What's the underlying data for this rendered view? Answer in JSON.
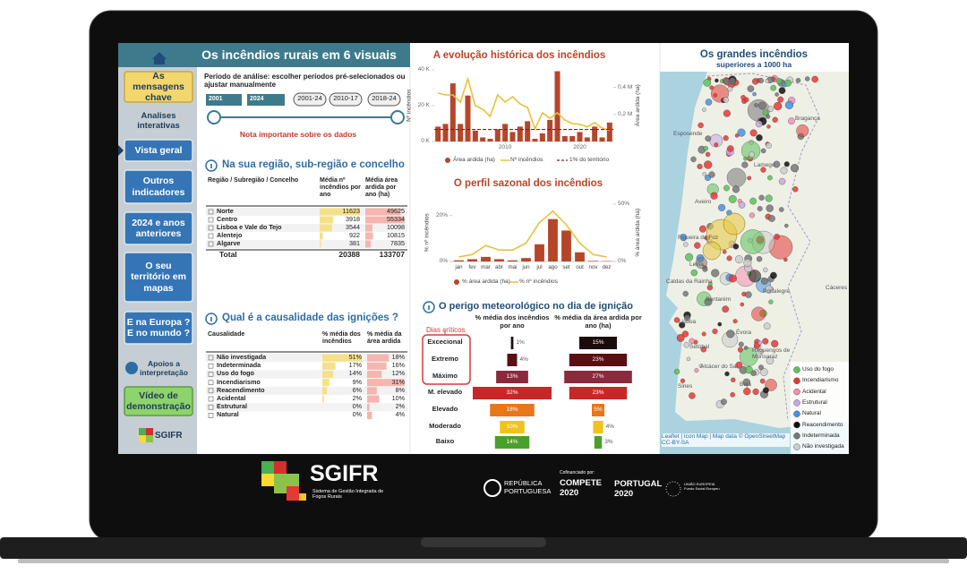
{
  "sidebar": {
    "items": [
      "As mensagens chave",
      "Analises interativas",
      "Vista geral",
      "Outros indicadores",
      "2024 e anos anteriores",
      "O seu território em mapas",
      "E na Europa ? E no mundo ?",
      "Apoios a interpretação",
      "Vídeo de demonstração"
    ],
    "logo": "SGIFR"
  },
  "header": {
    "title": "Os incêndios rurais em 6 visuais"
  },
  "period": {
    "label": "Período de análise: escolher períodos pré-selecionados ou ajustar manualmente",
    "start": "2001",
    "end": "2024",
    "presets": [
      "2001-24",
      "2010-17",
      "2018-24"
    ],
    "note": "Nota importante sobre os dados"
  },
  "regions": {
    "title": "Na sua região, sub-região e concelho",
    "category_header": "Região / Subregião / Concelho",
    "categories": [
      "Norte",
      "Centro",
      "Lisboa e Vale do Tejo",
      "Alentejo",
      "Algarve"
    ],
    "series": [
      {
        "name": "Média nº incêndios por ano",
        "color": "#f5e08a",
        "values": [
          11623,
          3918,
          3544,
          922,
          381
        ]
      },
      {
        "name": "Média área ardida por ano (ha)",
        "color": "#f4b6b0",
        "values": [
          49625,
          55334,
          10098,
          10815,
          7835
        ]
      }
    ],
    "total": {
      "label": "Total",
      "values": [
        20388,
        133707
      ]
    }
  },
  "causes": {
    "title": "Qual é a causalidade das ignições ?",
    "category_header": "Causalidade",
    "categories": [
      "Não investigada",
      "Indeterminada",
      "Uso do fogo",
      "Incendiarismo",
      "Reacendimento",
      "Acidental",
      "Estrutural",
      "Natural"
    ],
    "series": [
      {
        "name": "% média dos incêndios",
        "color": "#f5e08a",
        "values": [
          51,
          17,
          14,
          9,
          6,
          2,
          0,
          0
        ],
        "value_labels": [
          "51%",
          "17%",
          "14%",
          "9%",
          "6%",
          "2%",
          "0%",
          "0%"
        ]
      },
      {
        "name": "% média da área ardida",
        "color": "#f4b6b0",
        "values": [
          18,
          16,
          12,
          31,
          8,
          10,
          2,
          4
        ],
        "value_labels": [
          "18%",
          "16%",
          "12%",
          "31%",
          "8%",
          "10%",
          "2%",
          "4%"
        ]
      }
    ]
  },
  "chart_data": [
    {
      "type": "bar-line",
      "title": "A evolução histórica dos incêndios",
      "x": [
        2001,
        2002,
        2003,
        2004,
        2005,
        2006,
        2007,
        2008,
        2009,
        2010,
        2011,
        2012,
        2013,
        2014,
        2015,
        2016,
        2017,
        2018,
        2019,
        2020,
        2021,
        2022,
        2023,
        2024
      ],
      "xlim": [
        2000.5,
        2024.5
      ],
      "xticks": [
        2010,
        2020
      ],
      "ylabel": "Nº incêndios",
      "y2label": "Área ardida (ha)",
      "ylim": [
        0,
        40000
      ],
      "yticks": [
        {
          "value": 0,
          "label": "0 K"
        },
        {
          "value": 20000,
          "label": "20 K"
        },
        {
          "value": 40000,
          "label": "40 K"
        }
      ],
      "y2lim": [
        0,
        530000
      ],
      "y2ticks": [
        {
          "value": 200000,
          "label": "0,2 M"
        },
        {
          "value": 400000,
          "label": "0,4 M"
        }
      ],
      "series": [
        {
          "name": "Área ardida (ha)",
          "color": "#b5462a",
          "axis": "y2",
          "values": [
            110000,
            130000,
            430000,
            130000,
            340000,
            80000,
            30000,
            20000,
            90000,
            130000,
            70000,
            110000,
            150000,
            20000,
            60000,
            160000,
            520000,
            40000,
            40000,
            70000,
            30000,
            110000,
            30000,
            140000
          ]
        },
        {
          "name": "Nº incêndios",
          "color": "#e8c13a",
          "values": [
            27000,
            26000,
            26000,
            22000,
            35000,
            20000,
            18000,
            14000,
            26000,
            22000,
            25000,
            21000,
            19000,
            7000,
            16000,
            13000,
            16000,
            12000,
            10000,
            9600,
            8200,
            10500,
            7500,
            6200
          ]
        }
      ],
      "reference": {
        "name": "1% do território",
        "value": 89000,
        "axis": "y2",
        "color": "#8b1a1a"
      }
    },
    {
      "type": "bar-line",
      "title": "O perfil sazonal dos incêndios",
      "categories": [
        "jan",
        "fev",
        "mar",
        "abr",
        "mai",
        "jun",
        "jul",
        "ago",
        "set",
        "out",
        "nov",
        "dez"
      ],
      "ylabel": "% nº incêndios",
      "y2label": "% área ardida (ha)",
      "ylim": [
        0,
        25
      ],
      "yticks": [
        {
          "value": 0,
          "label": "0%"
        },
        {
          "value": 20,
          "label": "20%"
        }
      ],
      "y2lim": [
        0,
        50
      ],
      "y2ticks": [
        {
          "value": 0,
          "label": "0%"
        },
        {
          "value": 50,
          "label": "50%"
        }
      ],
      "series": [
        {
          "name": "% área ardida (ha)",
          "color": "#b5462a",
          "axis": "y2",
          "values": [
            1,
            2,
            4,
            2,
            1,
            3,
            15,
            37,
            27,
            8,
            0.5,
            0.3
          ]
        },
        {
          "name": "% nº incêndios",
          "color": "#e8c13a",
          "values": [
            2,
            3,
            7,
            5,
            5,
            8,
            17,
            22,
            16,
            8,
            3,
            2
          ]
        }
      ]
    },
    {
      "type": "funnel",
      "title": "O perigo meteorológico no dia de ignição",
      "annotation": "Dias críticos",
      "categories": [
        "Excecional",
        "Extremo",
        "Máximo",
        "M. elevado",
        "Elevado",
        "Moderado",
        "Baixo"
      ],
      "colors": [
        "#1c0b0b",
        "#5a1012",
        "#8b2a3c",
        "#c62828",
        "#e8761b",
        "#f2c21b",
        "#4aa02c"
      ],
      "series": [
        {
          "name": "% média dos incêndios por ano",
          "values": [
            1,
            4,
            13,
            32,
            18,
            10,
            14
          ],
          "value_labels": [
            "1%",
            "4%",
            "13%",
            "32%",
            "18%",
            "10%",
            "14%"
          ]
        },
        {
          "name": "% média da área ardida por ano (ha)",
          "values": [
            15,
            23,
            27,
            23,
            5,
            4,
            3
          ],
          "value_labels": [
            "15%",
            "23%",
            "27%",
            "23%",
            "5%",
            "4%",
            "3%"
          ]
        }
      ]
    }
  ],
  "map": {
    "title": "Os grandes incêndios",
    "subtitle": "superiores a 1000 ha",
    "places": [
      "Bragança",
      "Esposende",
      "Lamego",
      "Aveiro",
      "Figueira da Foz",
      "Leiria",
      "Caldas da Rainha",
      "Santarém",
      "Portalegre",
      "Cáceres",
      "Lisboa",
      "Setúbal",
      "Évora",
      "Sines",
      "Beja",
      "Reguengos de Monsaraz",
      "Alcácer do Sal"
    ],
    "legend": [
      {
        "name": "Uso do fogo",
        "color": "#5cc15a"
      },
      {
        "name": "Incendiarismo",
        "color": "#e53935"
      },
      {
        "name": "Acidental",
        "color": "#f48fb1"
      },
      {
        "name": "Estrutural",
        "color": "#c9a6e0"
      },
      {
        "name": "Natural",
        "color": "#4a90e2"
      },
      {
        "name": "Reacendimento",
        "color": "#111111"
      },
      {
        "name": "Indeterminada",
        "color": "#777777"
      },
      {
        "name": "Não investigada",
        "color": "#cccccc"
      }
    ],
    "attribution": "Leaflet | Icon Map | Map data © OpenStreetMap CC-BY-SA"
  },
  "footer": {
    "logo": "SGIFR",
    "logo_subtitle": "Sistema de Gestão Integrada de Fogos Rurais",
    "republic": "REPÚBLICA PORTUGUESA",
    "cofinanced": "Cofinanciado por:",
    "compete": "COMPETE 2020",
    "portugal": "PORTUGAL 2020",
    "eu": "UNIÃO EUROPEIA Fundo Social Europeu"
  }
}
